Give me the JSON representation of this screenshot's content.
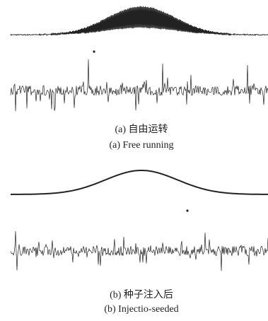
{
  "panels": [
    {
      "caption_cn": "(a) 自由运转",
      "caption_en": "(a) Free running"
    },
    {
      "caption_cn": "(b) 种子注入后",
      "caption_en": "(b) Injectio-seeded"
    }
  ]
}
